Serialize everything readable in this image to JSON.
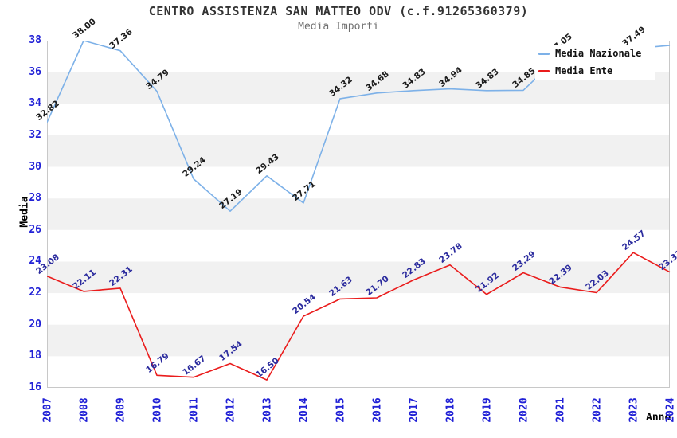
{
  "chart_data": {
    "type": "line",
    "title": "CENTRO ASSISTENZA SAN MATTEO ODV (c.f.91265360379)",
    "subtitle": "Media Importi",
    "xlabel": "Anno",
    "ylabel": "Media",
    "x_categories": [
      "2007",
      "2008",
      "2009",
      "2010",
      "2011",
      "2012",
      "2013",
      "2014",
      "2015",
      "2016",
      "2017",
      "2018",
      "2019",
      "2020",
      "2021",
      "2022",
      "2023",
      "2024"
    ],
    "ylim": [
      16,
      38
    ],
    "ytick_step": 2,
    "grid": "horizontal-bands",
    "legend_position": "top-right",
    "series": [
      {
        "name": "Media Nazionale",
        "color": "#7db1e8",
        "values": [
          32.82,
          38.0,
          37.36,
          34.79,
          29.24,
          27.19,
          29.43,
          27.71,
          34.32,
          34.68,
          34.83,
          34.94,
          34.83,
          34.85,
          37.05,
          37.2,
          37.49,
          37.7
        ],
        "labels": [
          "32.82",
          "38.00",
          "37.36",
          "34.79",
          "29.24",
          "27.19",
          "29.43",
          "27.71",
          "34.32",
          "34.68",
          "34.83",
          "34.94",
          "34.83",
          "34.85",
          "37.05",
          "",
          "37.49",
          ""
        ]
      },
      {
        "name": "Media Ente",
        "color": "#ea1c1c",
        "values": [
          23.08,
          22.11,
          22.31,
          16.79,
          16.67,
          17.54,
          16.5,
          20.54,
          21.63,
          21.7,
          22.83,
          23.78,
          21.92,
          23.29,
          22.39,
          22.03,
          24.57,
          23.33
        ],
        "labels": [
          "23.08",
          "22.11",
          "22.31",
          "16.79",
          "16.67",
          "17.54",
          "16.50",
          "20.54",
          "21.63",
          "21.70",
          "22.83",
          "23.78",
          "21.92",
          "23.29",
          "22.39",
          "22.03",
          "24.57",
          "23.33"
        ]
      }
    ]
  },
  "theme": {
    "background": "#ffffff",
    "band_color": "#f1f1f1",
    "plot_border_color": "#c8c8c8",
    "tick_label_color": "#2121d6",
    "title_color": "#333333",
    "subtitle_color": "#6e6e6e",
    "axis_title_color": "#000000",
    "series_label_colors": [
      "#1a1a1a",
      "#2b2b9e"
    ]
  }
}
